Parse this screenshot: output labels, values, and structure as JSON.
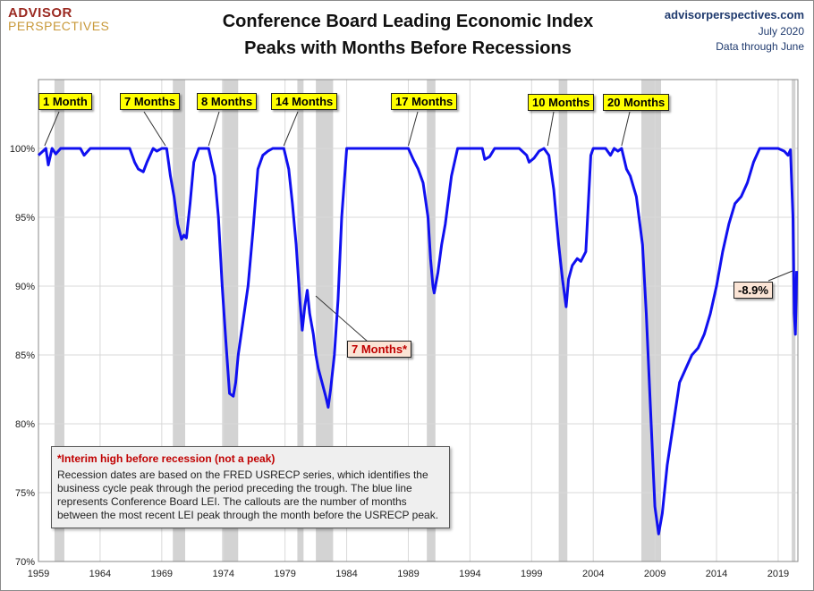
{
  "logo": {
    "line1": "ADVISOR",
    "line2": "PERSPECTIVES"
  },
  "title": {
    "line1": "Conference Board Leading Economic Index",
    "line2": "Peaks with Months Before Recessions"
  },
  "source": {
    "site": "advisorperspectives.com",
    "date": "July 2020",
    "through": "Data through June"
  },
  "callouts": [
    {
      "text": "1 Month",
      "peak": 1959.5
    },
    {
      "text": "7 Months",
      "peak": 1969.3
    },
    {
      "text": "8 Months",
      "peak": 1972.8
    },
    {
      "text": "14 Months",
      "peak": 1978.9
    },
    {
      "text": "17 Months",
      "peak": 1989.0
    },
    {
      "text": "10 Months",
      "peak": 2000.3
    },
    {
      "text": "20 Months",
      "peak": 2006.3
    }
  ],
  "interim_callout": {
    "text": "7 Months*"
  },
  "drawdown_callout": {
    "text": "-8.9%"
  },
  "note": {
    "title": "*Interim high before recession (not a peak)",
    "body": "Recession dates are based on the FRED USRECP series, which identifies the business cycle peak through the period preceding the trough. The blue line represents Conference Board LEI. The callouts are the number of months between the most recent LEI peak through the month  before the USRECP peak."
  },
  "colors": {
    "line": "#1010f0",
    "recession": "#d3d3d3",
    "grid": "#d9d9d9",
    "callout_fill": "#ffff00",
    "interim_fill": "#fbe4d5",
    "note_title": "#c00000"
  },
  "chart_data": {
    "type": "line",
    "title": "Conference Board Leading Economic Index Peaks with Months Before Recessions",
    "xlabel": "",
    "ylabel": "",
    "xlim": [
      1959,
      2020.6
    ],
    "ylim": [
      70,
      105
    ],
    "y_ticks": [
      70,
      75,
      80,
      85,
      90,
      95,
      100
    ],
    "y_tick_labels": [
      "70%",
      "75%",
      "80%",
      "85%",
      "90%",
      "95%",
      "100%"
    ],
    "x_ticks": [
      1959,
      1964,
      1969,
      1974,
      1979,
      1984,
      1989,
      1994,
      1999,
      2004,
      2009,
      2014,
      2019
    ],
    "x_tick_labels": [
      "1959",
      "1964",
      "1969",
      "1974",
      "1979",
      "1984",
      "1989",
      "1994",
      "1999",
      "2004",
      "2009",
      "2014",
      "2019"
    ],
    "grid": true,
    "recessions": [
      [
        1960.3,
        1961.1
      ],
      [
        1969.9,
        1970.9
      ],
      [
        1973.9,
        1975.2
      ],
      [
        1980.0,
        1980.5
      ],
      [
        1981.5,
        1982.9
      ],
      [
        1990.5,
        1991.2
      ],
      [
        2001.2,
        2001.9
      ],
      [
        2007.9,
        2009.5
      ],
      [
        2020.1,
        2020.4
      ]
    ],
    "series": [
      {
        "x": [
          1959.0,
          1959.6,
          1959.8,
          1960.1,
          1960.4,
          1960.8,
          1961.2,
          1961.6,
          1962.0,
          1962.4,
          1962.7,
          1963.2,
          1964.0,
          1965.0,
          1966.0,
          1966.4,
          1966.8,
          1967.1,
          1967.5,
          1967.8,
          1968.3,
          1968.6,
          1969.0,
          1969.4,
          1969.7,
          1970.0,
          1970.3,
          1970.6,
          1970.8,
          1971.0,
          1971.3,
          1971.6,
          1972.0,
          1972.4,
          1972.8,
          1973.3,
          1973.6,
          1973.9,
          1974.2,
          1974.5,
          1974.8,
          1975.0,
          1975.2,
          1975.6,
          1976.0,
          1976.4,
          1976.8,
          1977.2,
          1977.6,
          1978.0,
          1978.5,
          1978.9,
          1979.3,
          1979.6,
          1979.9,
          1980.2,
          1980.4,
          1980.6,
          1980.8,
          1981.0,
          1981.3,
          1981.5,
          1981.7,
          1982.0,
          1982.3,
          1982.5,
          1982.7,
          1983.0,
          1983.3,
          1983.6,
          1984.0,
          1985.0,
          1986.0,
          1987.0,
          1988.0,
          1988.6,
          1989.0,
          1989.4,
          1989.8,
          1990.2,
          1990.6,
          1990.8,
          1991.0,
          1991.1,
          1991.4,
          1991.7,
          1992.0,
          1992.5,
          1993.0,
          1993.5,
          1994.0,
          1995.0,
          1995.2,
          1995.6,
          1996.0,
          1997.0,
          1998.0,
          1998.6,
          1998.8,
          1999.2,
          1999.6,
          2000.0,
          2000.4,
          2000.8,
          2001.2,
          2001.5,
          2001.8,
          2002.0,
          2002.3,
          2002.7,
          2003.0,
          2003.4,
          2003.8,
          2004.0,
          2004.5,
          2005.0,
          2005.4,
          2005.7,
          2006.0,
          2006.3,
          2006.7,
          2007.0,
          2007.5,
          2008.0,
          2008.3,
          2008.6,
          2008.9,
          2009.0,
          2009.3,
          2009.6,
          2010.0,
          2010.5,
          2011.0,
          2011.5,
          2012.0,
          2012.5,
          2013.0,
          2013.5,
          2014.0,
          2014.5,
          2015.0,
          2015.5,
          2016.0,
          2016.5,
          2017.0,
          2017.5,
          2018.0,
          2018.5,
          2019.0,
          2019.5,
          2019.8,
          2020.0,
          2020.2,
          2020.3,
          2020.4,
          2020.5
        ],
        "y": [
          99.5,
          100,
          98.8,
          100,
          99.6,
          100,
          100,
          100,
          100,
          100,
          99.5,
          100,
          100,
          100,
          100,
          100,
          99.0,
          98.5,
          98.3,
          99.0,
          100,
          99.8,
          100,
          100,
          98.0,
          96.5,
          94.5,
          93.4,
          93.7,
          93.5,
          96.0,
          99.0,
          100,
          100,
          100,
          98.0,
          95.0,
          90.0,
          86.0,
          82.2,
          82.0,
          83.0,
          85.0,
          87.5,
          90.0,
          94.0,
          98.5,
          99.5,
          99.8,
          100,
          100,
          100,
          98.5,
          96.0,
          93.0,
          89.0,
          86.8,
          88.5,
          89.7,
          88.0,
          86.5,
          85.0,
          84.0,
          83.0,
          82.0,
          81.2,
          82.5,
          85.0,
          89.0,
          95.0,
          100,
          100,
          100,
          100,
          100,
          100,
          100,
          99.2,
          98.5,
          97.5,
          95.0,
          92.0,
          90.0,
          89.5,
          91.0,
          93.0,
          94.5,
          98.0,
          100,
          100,
          100,
          100,
          99.2,
          99.4,
          100,
          100,
          100,
          99.5,
          99.0,
          99.3,
          99.8,
          100,
          99.5,
          97.0,
          93.0,
          90.5,
          88.5,
          90.5,
          91.5,
          92.0,
          91.8,
          92.5,
          99.5,
          100,
          100,
          100,
          99.5,
          100,
          99.8,
          100,
          98.5,
          98.0,
          96.5,
          93.0,
          88.0,
          82.0,
          76.0,
          74.0,
          72.0,
          73.5,
          77.0,
          80.0,
          83.0,
          84.0,
          85.0,
          85.5,
          86.5,
          88.0,
          90.0,
          92.5,
          94.5,
          96.0,
          96.5,
          97.5,
          99.0,
          100,
          100,
          100,
          100,
          99.8,
          99.5,
          99.9,
          95.0,
          88.0,
          86.5,
          91.1
        ]
      }
    ]
  }
}
